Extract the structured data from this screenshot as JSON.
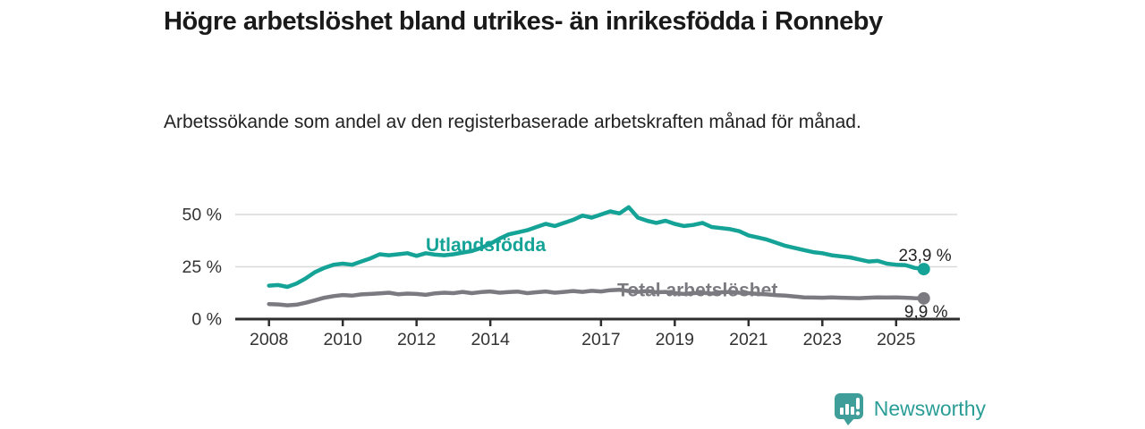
{
  "header": {
    "title": "Högre arbetslöshet bland utrikes- än inrikesfödda i Ronneby",
    "subtitle": "Arbetssökande som andel av den registerbaserade arbetskraften månad för månad."
  },
  "footer": {
    "brand": "Newsworthy",
    "brand_color": "#2a9d97",
    "logo_icon": "bar-chart-speech-bubble-icon"
  },
  "chart_data": {
    "type": "line",
    "title": "Högre arbetslöshet bland utrikes- än inrikesfödda i Ronneby",
    "subtitle": "Arbetssökande som andel av den registerbaserade arbetskraften månad för månad.",
    "xlabel": "",
    "ylabel": "",
    "xlim": [
      2007.1,
      2026.75
    ],
    "ylim": [
      0,
      62
    ],
    "grid": "horizontal",
    "legend_position": "inline-labels",
    "style": {
      "grid_color": "#d9d9d9",
      "axis_color": "#2e2e2e",
      "tick_label_color": "#333333",
      "annotation_color": "#222222"
    },
    "y_axis": {
      "ticks": [
        {
          "value": 0,
          "label": "0 %"
        },
        {
          "value": 25,
          "label": "25 %"
        },
        {
          "value": 50,
          "label": "50 %"
        }
      ]
    },
    "x_axis": {
      "ticks": [
        {
          "value": 2008,
          "label": "2008"
        },
        {
          "value": 2010,
          "label": "2010"
        },
        {
          "value": 2012,
          "label": "2012"
        },
        {
          "value": 2014,
          "label": "2014"
        },
        {
          "value": 2017,
          "label": "2017"
        },
        {
          "value": 2019,
          "label": "2019"
        },
        {
          "value": 2021,
          "label": "2021"
        },
        {
          "value": 2023,
          "label": "2023"
        },
        {
          "value": 2025,
          "label": "2025"
        }
      ]
    },
    "x": [
      2008.0,
      2008.25,
      2008.5,
      2008.75,
      2009.0,
      2009.25,
      2009.5,
      2009.75,
      2010.0,
      2010.25,
      2010.5,
      2010.75,
      2011.0,
      2011.25,
      2011.5,
      2011.75,
      2012.0,
      2012.25,
      2012.5,
      2012.75,
      2013.0,
      2013.25,
      2013.5,
      2013.75,
      2014.0,
      2014.25,
      2014.5,
      2014.75,
      2015.0,
      2015.25,
      2015.5,
      2015.75,
      2016.0,
      2016.25,
      2016.5,
      2016.75,
      2017.0,
      2017.25,
      2017.5,
      2017.75,
      2018.0,
      2018.25,
      2018.5,
      2018.75,
      2019.0,
      2019.25,
      2019.5,
      2019.75,
      2020.0,
      2020.25,
      2020.5,
      2020.75,
      2021.0,
      2021.25,
      2021.5,
      2021.75,
      2022.0,
      2022.25,
      2022.5,
      2022.75,
      2023.0,
      2023.25,
      2023.5,
      2023.75,
      2024.0,
      2024.25,
      2024.5,
      2024.75,
      2025.0,
      2025.25,
      2025.5,
      2025.75
    ],
    "series": [
      {
        "id": "utlandsfodda",
        "name": "Utlandsfödda",
        "color": "#14a396",
        "end_label": "23,9 %",
        "end_value": 23.9,
        "label_pos": {
          "x": 2012.25,
          "y": 32.5
        },
        "end_label_pos": {
          "x": 2026.5,
          "y": 27.8
        },
        "values": [
          16.0,
          16.3,
          15.4,
          17.0,
          19.5,
          22.5,
          24.5,
          26.0,
          26.5,
          26.0,
          27.5,
          29.0,
          31.0,
          30.5,
          31.0,
          31.5,
          30.2,
          31.5,
          30.8,
          30.5,
          31.0,
          31.8,
          32.5,
          34.0,
          36.0,
          38.5,
          40.5,
          41.5,
          42.5,
          44.0,
          45.5,
          44.5,
          46.0,
          47.5,
          49.5,
          48.5,
          50.0,
          51.5,
          50.5,
          53.5,
          48.5,
          47.0,
          46.0,
          47.0,
          45.5,
          44.5,
          45.0,
          46.0,
          44.0,
          43.5,
          43.0,
          42.0,
          40.0,
          39.0,
          38.0,
          36.5,
          35.0,
          34.0,
          33.0,
          32.0,
          31.5,
          30.5,
          30.0,
          29.5,
          28.5,
          27.5,
          27.8,
          26.5,
          26.0,
          25.8,
          24.5,
          23.9
        ]
      },
      {
        "id": "total",
        "name": "Total arbetslöshet",
        "color": "#7b7a80",
        "end_label": "9,9 %",
        "end_value": 9.9,
        "label_pos": {
          "x": 2017.44,
          "y": 10.9
        },
        "end_label_pos": {
          "x": 2026.4,
          "y": 0.9
        },
        "values": [
          7.2,
          7.0,
          6.6,
          6.9,
          7.8,
          9.0,
          10.2,
          11.0,
          11.5,
          11.2,
          11.8,
          12.0,
          12.3,
          12.6,
          11.9,
          12.2,
          12.0,
          11.6,
          12.3,
          12.6,
          12.4,
          13.0,
          12.4,
          12.9,
          13.2,
          12.6,
          12.9,
          13.1,
          12.4,
          12.8,
          13.2,
          12.6,
          13.0,
          13.4,
          13.0,
          13.5,
          13.2,
          13.8,
          14.0,
          13.4,
          13.0,
          13.4,
          12.8,
          13.0,
          12.4,
          12.0,
          12.4,
          12.6,
          12.2,
          12.8,
          13.0,
          12.6,
          12.4,
          12.0,
          11.8,
          11.4,
          11.2,
          10.8,
          10.4,
          10.3,
          10.2,
          10.4,
          10.2,
          10.1,
          10.0,
          10.2,
          10.4,
          10.3,
          10.4,
          10.2,
          10.0,
          9.9
        ]
      }
    ]
  }
}
